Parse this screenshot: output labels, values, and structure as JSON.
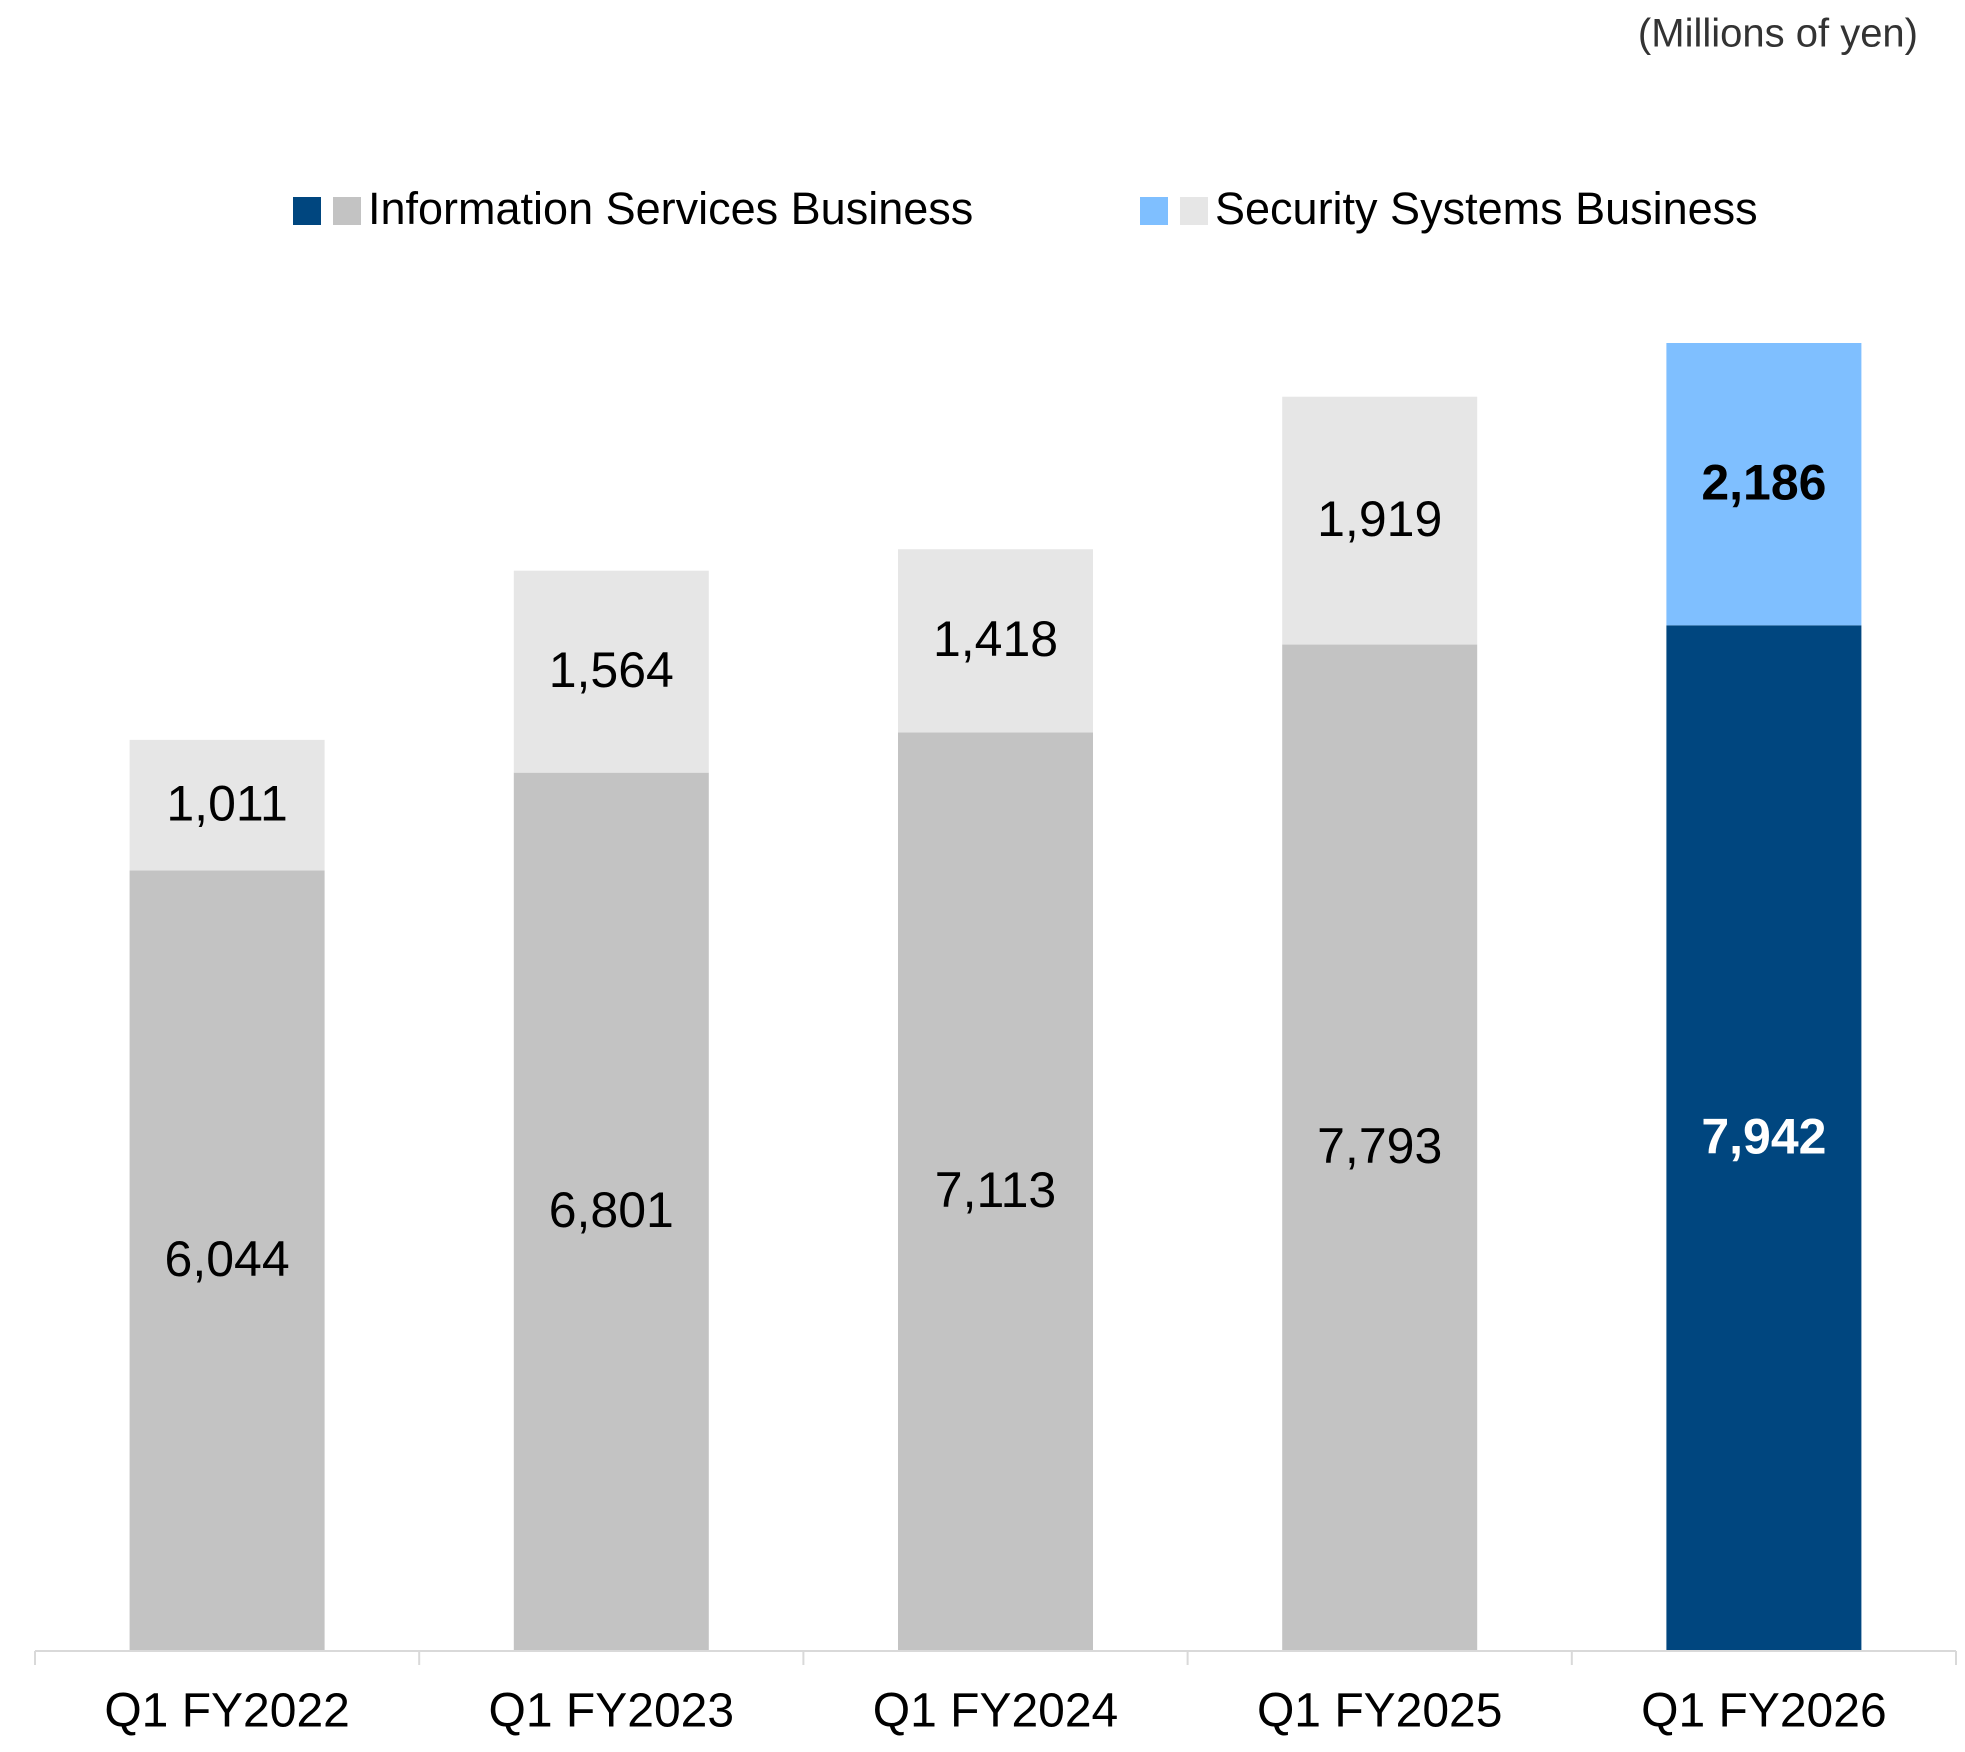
{
  "chart_data": {
    "type": "stacked_bar",
    "unit_label": "(Millions of yen)",
    "categories": [
      "Q1 FY2022",
      "Q1 FY2023",
      "Q1 FY2024",
      "Q1 FY2025",
      "Q1 FY2026"
    ],
    "series": [
      {
        "name": "Information Services Business",
        "colors": [
          "#c3c3c3",
          "#c3c3c3",
          "#c3c3c3",
          "#c3c3c3",
          "#00467f"
        ],
        "label_colors": [
          "#000000",
          "#000000",
          "#000000",
          "#000000",
          "#ffffff"
        ],
        "values": [
          6044,
          6801,
          7113,
          7793,
          7942
        ],
        "value_labels": [
          "6,044",
          "6,801",
          "7,113",
          "7,793",
          "7,942"
        ]
      },
      {
        "name": "Security Systems Business",
        "colors": [
          "#e6e6e6",
          "#e6e6e6",
          "#e6e6e6",
          "#e6e6e6",
          "#7fbfff"
        ],
        "label_colors": [
          "#000000",
          "#000000",
          "#000000",
          "#000000",
          "#000000"
        ],
        "values": [
          1011,
          1564,
          1418,
          1919,
          2186
        ],
        "value_labels": [
          "1,011",
          "1,564",
          "1,418",
          "1,919",
          "2,186"
        ]
      }
    ]
  }
}
